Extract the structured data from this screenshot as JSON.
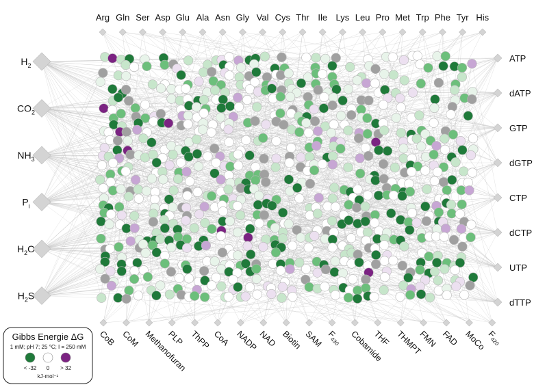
{
  "colors": {
    "green_dark": "#1f7a3a",
    "green_mid": "#6cbf7b",
    "green_light": "#c7e6cb",
    "green_pale": "#e8f4ea",
    "white": "#ffffff",
    "purple_pale": "#ece0f0",
    "purple_light": "#c7a6d4",
    "purple_dark": "#7b2382",
    "gray": "#a0a0a0",
    "diamond": "#d4d4d4",
    "edge": "#bdbdbd"
  },
  "top_labels": [
    "Arg",
    "Gln",
    "Ser",
    "Asp",
    "Glu",
    "Ala",
    "Asn",
    "Gly",
    "Val",
    "Cys",
    "Thr",
    "Ile",
    "Lys",
    "Leu",
    "Pro",
    "Met",
    "Trp",
    "Phe",
    "Tyr",
    "His"
  ],
  "left_labels": [
    {
      "base": "H",
      "sub": "2",
      "tail": ""
    },
    {
      "base": "CO",
      "sub": "2",
      "tail": ""
    },
    {
      "base": "NH",
      "sub": "3",
      "tail": ""
    },
    {
      "base": "P",
      "sub": "i",
      "tail": ""
    },
    {
      "base": "H",
      "sub": "2",
      "tail": "O"
    },
    {
      "base": "H",
      "sub": "2",
      "tail": "S"
    }
  ],
  "right_labels": [
    "ATP",
    "dATP",
    "GTP",
    "dGTP",
    "CTP",
    "dCTP",
    "UTP",
    "dTTP"
  ],
  "bottom_labels": [
    {
      "base": "CoB",
      "sub": ""
    },
    {
      "base": "CoM",
      "sub": ""
    },
    {
      "base": "Methanofuran",
      "sub": ""
    },
    {
      "base": "PLP",
      "sub": ""
    },
    {
      "base": "ThPP",
      "sub": ""
    },
    {
      "base": "CoA",
      "sub": ""
    },
    {
      "base": "NADP",
      "sub": ""
    },
    {
      "base": "NAD",
      "sub": ""
    },
    {
      "base": "Biotin",
      "sub": ""
    },
    {
      "base": "SAM",
      "sub": ""
    },
    {
      "base": "F",
      "sub": "430"
    },
    {
      "base": "Cobamide",
      "sub": ""
    },
    {
      "base": "THF",
      "sub": ""
    },
    {
      "base": "THMPT",
      "sub": ""
    },
    {
      "base": "FMN",
      "sub": ""
    },
    {
      "base": "FAD",
      "sub": ""
    },
    {
      "base": "MoCo",
      "sub": ""
    },
    {
      "base": "F",
      "sub": "420"
    }
  ],
  "legend": {
    "title": "Gibbs Energie ΔG",
    "conditions": "1 mM; pH 7; 25 °C; I = 250 mM",
    "ticks": [
      "< -32",
      "0",
      "> 32"
    ],
    "unit": "kJ·mol⁻¹"
  }
}
